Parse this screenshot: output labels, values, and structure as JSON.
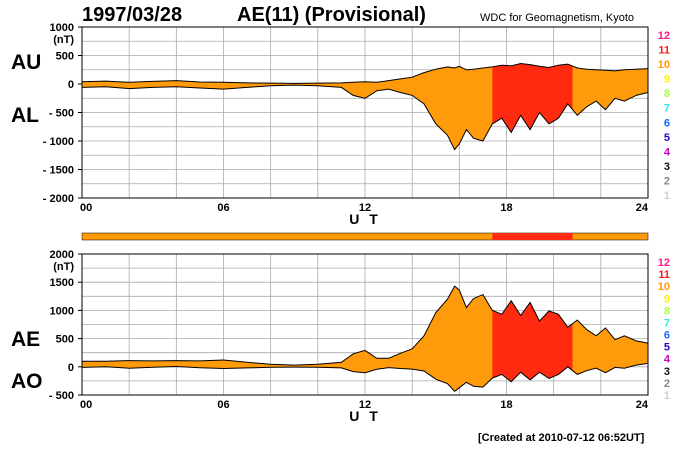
{
  "header": {
    "date": "1997/03/28",
    "title": "AE(11) (Provisional)",
    "credit": "WDC for Geomagnetism, Kyoto"
  },
  "footer": {
    "created": "[Created at 2010-07-12 06:52UT]"
  },
  "side_labels": {
    "au": "AU",
    "al": "AL",
    "ae": "AE",
    "ao": "AO"
  },
  "colors": {
    "fill": "#ff9a0a",
    "fill_high": "#ff2a10",
    "frame": "#000000",
    "grid": "#aaaaaa"
  },
  "station_count_legend": [
    {
      "label": "12",
      "color": "#ff1a8c"
    },
    {
      "label": "11",
      "color": "#ff1a1a"
    },
    {
      "label": "10",
      "color": "#ff9a00"
    },
    {
      "label": "9",
      "color": "#ffee00"
    },
    {
      "label": "8",
      "color": "#a8ff3c"
    },
    {
      "label": "7",
      "color": "#33e6e6"
    },
    {
      "label": "6",
      "color": "#1a66ff"
    },
    {
      "label": "5",
      "color": "#3300cc"
    },
    {
      "label": "4",
      "color": "#cc00cc"
    },
    {
      "label": "3",
      "color": "#111111"
    },
    {
      "label": "2",
      "color": "#888888"
    },
    {
      "label": "1",
      "color": "#cccccc"
    }
  ],
  "chart_data": [
    {
      "type": "area",
      "title": "AU / AL",
      "xlabel": "U T",
      "ylabel": "(nT)",
      "xlim": [
        0,
        24
      ],
      "ylim": [
        -2000,
        1000
      ],
      "x_ticks": [
        "00",
        "06",
        "12",
        "18",
        "24"
      ],
      "y_ticks": [
        "1000",
        "500",
        "0",
        "- 500",
        "- 1000",
        "- 1500",
        "- 2000"
      ],
      "grid": true,
      "x": [
        0,
        1,
        2,
        3,
        4,
        5,
        6,
        7,
        8,
        9,
        10,
        11,
        11.5,
        12,
        12.5,
        13,
        13.5,
        14,
        14.5,
        15,
        15.5,
        15.8,
        16,
        16.3,
        16.6,
        17,
        17.4,
        17.8,
        18.2,
        18.6,
        19,
        19.4,
        19.8,
        20.2,
        20.6,
        21,
        21.4,
        21.8,
        22.2,
        22.6,
        23,
        23.5,
        24
      ],
      "series": [
        {
          "name": "AU",
          "values": [
            40,
            50,
            30,
            45,
            60,
            35,
            30,
            20,
            15,
            10,
            15,
            20,
            30,
            40,
            30,
            60,
            90,
            120,
            200,
            260,
            300,
            280,
            310,
            250,
            260,
            280,
            300,
            330,
            320,
            360,
            340,
            310,
            290,
            330,
            350,
            280,
            260,
            250,
            240,
            230,
            250,
            260,
            270
          ]
        },
        {
          "name": "AL",
          "values": [
            -60,
            -50,
            -80,
            -60,
            -50,
            -70,
            -90,
            -60,
            -30,
            -20,
            -30,
            -60,
            -200,
            -250,
            -120,
            -90,
            -150,
            -200,
            -350,
            -700,
            -900,
            -1150,
            -1050,
            -800,
            -950,
            -1000,
            -700,
            -600,
            -850,
            -550,
            -800,
            -500,
            -700,
            -600,
            -350,
            -550,
            -400,
            -300,
            -450,
            -250,
            -300,
            -200,
            -150
          ]
        }
      ],
      "high_station_band_ut": [
        17.4,
        20.8
      ],
      "high_station_count": "11",
      "base_station_count": "10"
    },
    {
      "type": "area",
      "title": "AE / AO",
      "xlabel": "U T",
      "ylabel": "(nT)",
      "xlim": [
        0,
        24
      ],
      "ylim": [
        -500,
        2000
      ],
      "x_ticks": [
        "00",
        "06",
        "12",
        "18",
        "24"
      ],
      "y_ticks": [
        "2000",
        "1500",
        "1000",
        "500",
        "0",
        "- 500"
      ],
      "grid": true,
      "x": [
        0,
        1,
        2,
        3,
        4,
        5,
        6,
        7,
        8,
        9,
        10,
        11,
        11.5,
        12,
        12.5,
        13,
        13.5,
        14,
        14.5,
        15,
        15.5,
        15.8,
        16,
        16.3,
        16.6,
        17,
        17.4,
        17.8,
        18.2,
        18.6,
        19,
        19.4,
        19.8,
        20.2,
        20.6,
        21,
        21.4,
        21.8,
        22.2,
        22.6,
        23,
        23.5,
        24
      ],
      "series": [
        {
          "name": "AE",
          "values": [
            100,
            100,
            110,
            105,
            110,
            105,
            120,
            80,
            45,
            30,
            45,
            80,
            230,
            290,
            150,
            150,
            240,
            320,
            550,
            960,
            1200,
            1430,
            1360,
            1050,
            1210,
            1280,
            1000,
            930,
            1170,
            910,
            1140,
            810,
            990,
            930,
            700,
            830,
            660,
            550,
            690,
            480,
            550,
            460,
            420
          ]
        },
        {
          "name": "AO",
          "values": [
            -10,
            0,
            -25,
            -8,
            5,
            -18,
            -30,
            -20,
            -8,
            -5,
            -8,
            -20,
            -85,
            -105,
            -45,
            -15,
            -30,
            -40,
            -75,
            -220,
            -300,
            -435,
            -370,
            -275,
            -345,
            -360,
            -200,
            -135,
            -265,
            -95,
            -230,
            -95,
            -205,
            -135,
            0,
            -135,
            -70,
            -25,
            -105,
            -10,
            -25,
            30,
            60
          ]
        }
      ],
      "high_station_band_ut": [
        17.4,
        20.8
      ],
      "high_station_count": "11",
      "base_station_count": "10"
    }
  ]
}
